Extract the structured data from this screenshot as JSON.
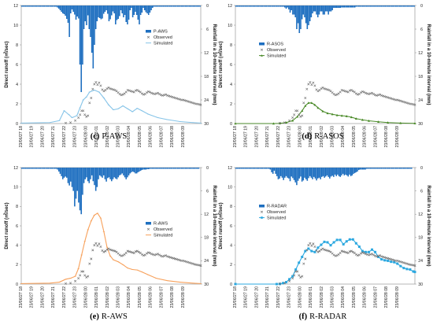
{
  "chart_data": [
    {
      "id": "c",
      "type": "line",
      "caption": {
        "letter": "(c)",
        "name": "P-AWS"
      },
      "legend": {
        "rain": "P-AWS",
        "observed": "Observed",
        "simulated": "Simulated"
      },
      "sim_color": "#86c4e8",
      "sim_marker": "line",
      "rain": [
        0.3,
        0.3,
        0.3,
        0.3,
        0.3,
        0.3,
        0.3,
        0.3,
        0.3,
        0.3,
        0.3,
        0.3,
        0.3,
        0.3,
        0.3,
        0.3,
        0.3,
        0.3,
        0.3,
        0.3,
        0.3,
        0.3,
        0.3,
        0.3,
        0.3,
        0.3,
        0.3,
        0.5,
        0.8,
        1.2,
        1.6,
        2.0,
        2.2,
        2.6,
        3.4,
        4.4,
        8,
        2,
        1,
        1.6,
        2.3,
        3.6,
        2.8,
        3.3,
        15,
        22,
        15,
        6,
        4,
        5,
        2.5,
        6,
        8,
        12,
        16,
        10,
        6,
        4,
        3,
        3.2,
        3.5,
        3.3,
        2.1,
        1.6,
        1.2,
        2.1,
        4,
        3.5,
        2.5,
        1.5,
        2,
        4.8,
        3.7,
        3.4,
        2.7,
        1.2,
        2,
        3,
        2.4,
        4.2,
        4.8,
        3.6,
        1.2,
        0.6,
        3,
        2.4,
        1.6,
        2.4,
        3.6,
        4.8,
        2.4,
        1.8,
        0.6,
        1.2,
        1.7,
        2,
        2.4,
        1.8,
        1.2,
        0.6,
        0.3,
        0.3,
        0.3,
        0.3,
        0.3,
        0.3,
        0.3,
        0.3,
        0.3,
        0.3,
        0.3,
        0.3,
        0.3,
        0.3,
        0.3,
        0.3,
        0.3,
        0.3,
        0.3,
        0.3,
        0.3,
        0.3,
        0.3,
        0.3,
        0.3,
        0.3,
        0.3,
        0.3,
        0.3,
        0.3,
        0.3,
        0.3,
        0.3,
        0.3,
        0.3,
        0.3
      ],
      "sim": [
        [
          0,
          0.05
        ],
        [
          18,
          0.1
        ],
        [
          24,
          0.3
        ],
        [
          27,
          1.3
        ],
        [
          30,
          0.9
        ],
        [
          32,
          0.6
        ],
        [
          35,
          0.8
        ],
        [
          37,
          1.6
        ],
        [
          39,
          2.4
        ],
        [
          41,
          2.7
        ],
        [
          43,
          3.2
        ],
        [
          46,
          3.4
        ],
        [
          49,
          3.2
        ],
        [
          52,
          2.6
        ],
        [
          55,
          1.9
        ],
        [
          58,
          1.4
        ],
        [
          61,
          1.5
        ],
        [
          64,
          1.8
        ],
        [
          67,
          1.5
        ],
        [
          70,
          1.2
        ],
        [
          73,
          1.55
        ],
        [
          76,
          1.3
        ],
        [
          80,
          0.95
        ],
        [
          86,
          0.6
        ],
        [
          92,
          0.4
        ],
        [
          100,
          0.2
        ],
        [
          108,
          0.1
        ],
        [
          113,
          0.05
        ]
      ]
    },
    {
      "id": "d",
      "type": "line",
      "caption": {
        "letter": "(d)",
        "name": "R-ASOS"
      },
      "legend": {
        "rain": "R-ASOS",
        "observed": "Observed",
        "simulated": "Simulated"
      },
      "sim_color": "#4a8a28",
      "sim_marker": "triangle",
      "rain": [
        0.3,
        0.3,
        0.3,
        0.3,
        0.3,
        0.3,
        0.3,
        0.3,
        0.3,
        0.3,
        0.3,
        0.3,
        0.3,
        0.3,
        0.3,
        0.3,
        0.3,
        0.3,
        0.3,
        0.3,
        0.3,
        0.3,
        0.3,
        0.3,
        0.3,
        0.3,
        0.3,
        0.3,
        0.3,
        0.3,
        0.3,
        0.3,
        0.3,
        0.3,
        0.3,
        0.3,
        0.3,
        0.5,
        0.8,
        0.5,
        1,
        1.8,
        1.2,
        2.3,
        2.3,
        3,
        6,
        4.5,
        7,
        6,
        3.5,
        2.3,
        3,
        4.5,
        6,
        5,
        4,
        3,
        2,
        1.5,
        1.5,
        2.3,
        3,
        2.3,
        1.5,
        1.5,
        2.3,
        2.3,
        1.5,
        1.5,
        2.3,
        1.5,
        1.5,
        1.2,
        0.6,
        0.6,
        0.6,
        0.6,
        0.6,
        0.6,
        0.5,
        0.5,
        0.5,
        0.5,
        0.5,
        0.5,
        0.5,
        0.5,
        0.5,
        0.5,
        0.5,
        0.3,
        0.3,
        0.3,
        0.3,
        0.3,
        0.3,
        0.3,
        0.3,
        0.3,
        0.3,
        0.3,
        0.3,
        0.3,
        0.3,
        0.3,
        0.3,
        0.3,
        0.3,
        0.3,
        0.3,
        0.3,
        0.3,
        0.3,
        0.3,
        0.3,
        0.3,
        0.3,
        0.3,
        0.3,
        0.3,
        0.3,
        0.3,
        0.3,
        0.3,
        0.3,
        0.3,
        0.3,
        0.3,
        0.3,
        0.3,
        0.3,
        0.3,
        0.3,
        0.3,
        0.3
      ],
      "sim": [
        [
          0,
          0
        ],
        [
          24,
          0
        ],
        [
          28,
          0.02
        ],
        [
          32,
          0.1
        ],
        [
          36,
          0.3
        ],
        [
          39,
          0.7
        ],
        [
          42,
          1.3
        ],
        [
          44,
          1.8
        ],
        [
          46,
          2.1
        ],
        [
          48,
          2.1
        ],
        [
          50,
          1.9
        ],
        [
          52,
          1.6
        ],
        [
          55,
          1.25
        ],
        [
          58,
          1.05
        ],
        [
          61,
          0.95
        ],
        [
          64,
          0.85
        ],
        [
          67,
          0.8
        ],
        [
          70,
          0.75
        ],
        [
          73,
          0.65
        ],
        [
          76,
          0.5
        ],
        [
          80,
          0.38
        ],
        [
          84,
          0.28
        ],
        [
          90,
          0.18
        ],
        [
          96,
          0.1
        ],
        [
          104,
          0.05
        ],
        [
          113,
          0.02
        ]
      ]
    },
    {
      "id": "e",
      "type": "line",
      "caption": {
        "letter": "(e)",
        "name": "R-AWS"
      },
      "legend": {
        "rain": "R-AWS",
        "observed": "Observed",
        "simulated": "Simulated"
      },
      "sim_color": "#f7a05a",
      "sim_marker": "line",
      "rain": [
        0.3,
        0.3,
        0.3,
        0.3,
        0.3,
        0.3,
        0.3,
        0.3,
        0.3,
        0.3,
        0.3,
        0.3,
        0.3,
        0.3,
        0.3,
        0.3,
        0.3,
        0.3,
        0.3,
        0.3,
        0.3,
        0.3,
        0.3,
        0.3,
        0.3,
        0.3,
        0.3,
        0.5,
        1,
        1.6,
        2.2,
        3,
        2.6,
        2.3,
        2.6,
        4,
        4.6,
        3.6,
        5,
        6,
        10,
        8,
        6,
        9,
        11,
        12,
        7,
        4,
        3,
        2.5,
        3.5,
        4,
        3,
        2,
        3.5,
        4.5,
        6,
        5,
        3,
        2,
        2.3,
        2.6,
        2,
        3,
        3.6,
        2.7,
        2.5,
        3,
        3.5,
        3,
        2.5,
        2.8,
        3,
        2.5,
        2,
        1.8,
        1.5,
        2,
        2.5,
        3,
        2.5,
        2,
        1.5,
        1.2,
        1,
        1.2,
        1.5,
        1.5,
        1.2,
        1,
        0.8,
        0.6,
        0.5,
        0.5,
        0.5,
        0.4,
        0.4,
        0.3,
        0.3,
        0.3,
        0.3,
        0.3,
        0.3,
        0.3,
        0.3,
        0.3,
        0.3,
        0.3,
        0.3,
        0.3,
        0.3,
        0.3,
        0.3,
        0.3,
        0.3,
        0.3,
        0.3,
        0.3,
        0.3,
        0.3,
        0.3,
        0.3,
        0.3,
        0.3,
        0.3,
        0.3,
        0.3,
        0.3,
        0.3,
        0.3,
        0.3,
        0.3,
        0.3,
        0.3,
        0.3
      ],
      "sim": [
        [
          0,
          0.05
        ],
        [
          18,
          0.1
        ],
        [
          24,
          0.2
        ],
        [
          28,
          0.5
        ],
        [
          31,
          0.6
        ],
        [
          34,
          0.8
        ],
        [
          36,
          1.6
        ],
        [
          38,
          3
        ],
        [
          40,
          4.4
        ],
        [
          42,
          5.6
        ],
        [
          44,
          6.5
        ],
        [
          46,
          7.1
        ],
        [
          48,
          7.3
        ],
        [
          50,
          6.8
        ],
        [
          52,
          5.4
        ],
        [
          54,
          3.8
        ],
        [
          56,
          2.9
        ],
        [
          58,
          2.5
        ],
        [
          61,
          2.3
        ],
        [
          64,
          2
        ],
        [
          67,
          1.65
        ],
        [
          70,
          1.5
        ],
        [
          73,
          1.45
        ],
        [
          76,
          1.25
        ],
        [
          80,
          0.95
        ],
        [
          85,
          0.6
        ],
        [
          92,
          0.35
        ],
        [
          100,
          0.2
        ],
        [
          108,
          0.1
        ],
        [
          113,
          0.05
        ]
      ]
    },
    {
      "id": "f",
      "type": "line",
      "caption": {
        "letter": "(f)",
        "name": "R-RADAR"
      },
      "legend": {
        "rain": "R-RADAR",
        "observed": "Observed",
        "simulated": "Simulated"
      },
      "sim_color": "#2ba8e0",
      "sim_marker": "square",
      "rain": [
        0.3,
        0.3,
        0.3,
        0.3,
        0.3,
        0.3,
        0.3,
        0.3,
        0.3,
        0.3,
        0.3,
        0.3,
        0.3,
        0.3,
        0.3,
        0.3,
        0.3,
        0.3,
        0.3,
        0.3,
        0.3,
        0.3,
        0.3,
        0.3,
        0.3,
        0.3,
        0.5,
        1.2,
        1.6,
        0.8,
        1.6,
        2.2,
        3,
        2.8,
        2.2,
        2.6,
        3.2,
        2.6,
        2.2,
        2.6,
        2.8,
        3.5,
        2.3,
        2.7,
        3.2,
        3.8,
        4.5,
        3.4,
        2.8,
        2.3,
        3.6,
        3.3,
        2.6,
        3,
        3.4,
        2.7,
        2.2,
        2.6,
        3,
        2.4,
        2.8,
        3.3,
        2.8,
        2.6,
        3,
        2.4,
        2.2,
        2.6,
        2.3,
        2,
        2.4,
        2.8,
        2.3,
        2.1,
        2.4,
        1.8,
        2.2,
        1.8,
        2.2,
        2.4,
        2,
        1.6,
        2,
        1.8,
        2,
        2.3,
        1.8,
        2.2,
        2,
        1.6,
        1.4,
        1.2,
        1,
        0.6,
        0.5,
        0.5,
        0.5,
        0.5,
        0.5,
        0.3,
        0.3,
        0.3,
        0.3,
        0.3,
        0.3,
        0.3,
        0.3,
        0.3,
        0.3,
        0.3,
        0.3,
        0.3,
        0.3,
        0.3,
        0.3,
        0.3,
        0.3,
        0.3,
        0.3,
        0.3,
        0.3,
        0.3,
        0.3,
        0.3,
        0.3,
        0.3,
        0.3,
        0.3,
        0.3,
        0.3,
        0.3,
        0.3,
        0.3,
        0.3
      ],
      "sim": [
        [
          0,
          0
        ],
        [
          26,
          0
        ],
        [
          28,
          0.01
        ],
        [
          30,
          0.1
        ],
        [
          32,
          0.2
        ],
        [
          34,
          0.5
        ],
        [
          36,
          0.8
        ],
        [
          38,
          1.5
        ],
        [
          40,
          2.2
        ],
        [
          42,
          2.8
        ],
        [
          44,
          3.4
        ],
        [
          46,
          3.65
        ],
        [
          48,
          3.4
        ],
        [
          50,
          3.3
        ],
        [
          52,
          3.75
        ],
        [
          54,
          4.05
        ],
        [
          56,
          4.35
        ],
        [
          58,
          4.3
        ],
        [
          60,
          4.0
        ],
        [
          62,
          4.3
        ],
        [
          64,
          4.55
        ],
        [
          66,
          4.55
        ],
        [
          68,
          4.1
        ],
        [
          70,
          4.4
        ],
        [
          72,
          4.6
        ],
        [
          74,
          4.6
        ],
        [
          76,
          4.2
        ],
        [
          78,
          3.85
        ],
        [
          80,
          3.4
        ],
        [
          82,
          3.3
        ],
        [
          84,
          3.3
        ],
        [
          86,
          3.55
        ],
        [
          88,
          3.3
        ],
        [
          90,
          2.8
        ],
        [
          92,
          2.55
        ],
        [
          94,
          2.45
        ],
        [
          96,
          2.4
        ],
        [
          98,
          2.3
        ],
        [
          100,
          2.25
        ],
        [
          102,
          2.1
        ],
        [
          104,
          1.85
        ],
        [
          106,
          1.65
        ],
        [
          108,
          1.55
        ],
        [
          110,
          1.5
        ],
        [
          112,
          1.3
        ],
        [
          113,
          1.25
        ]
      ]
    }
  ],
  "shared": {
    "observed": [
      [
        28,
        0.05
      ],
      [
        31,
        0.1
      ],
      [
        34,
        0.3
      ],
      [
        36,
        0.6
      ],
      [
        37,
        0.9
      ],
      [
        38,
        1.3
      ],
      [
        39,
        1.3
      ],
      [
        40,
        0.9
      ],
      [
        41,
        0.7
      ],
      [
        42,
        0.8
      ],
      [
        43,
        2.1
      ],
      [
        44,
        2.6
      ],
      [
        45,
        3.5
      ],
      [
        46,
        4.0
      ],
      [
        47,
        4.2
      ],
      [
        48,
        3.95
      ],
      [
        49,
        4.15
      ],
      [
        50,
        3.85
      ],
      [
        51,
        3.45
      ],
      [
        52,
        3.3
      ],
      [
        53,
        3.4
      ],
      [
        54,
        3.55
      ],
      [
        55,
        3.65
      ],
      [
        56,
        3.55
      ],
      [
        57,
        3.5
      ],
      [
        58,
        3.45
      ],
      [
        59,
        3.4
      ],
      [
        60,
        3.3
      ],
      [
        61,
        3.15
      ],
      [
        62,
        3.0
      ],
      [
        63,
        2.9
      ],
      [
        64,
        2.95
      ],
      [
        65,
        3.05
      ],
      [
        66,
        3.2
      ],
      [
        67,
        3.4
      ],
      [
        68,
        3.35
      ],
      [
        69,
        3.3
      ],
      [
        70,
        3.25
      ],
      [
        71,
        3.2
      ],
      [
        72,
        3.35
      ],
      [
        73,
        3.4
      ],
      [
        74,
        3.3
      ],
      [
        75,
        3.2
      ],
      [
        76,
        3.05
      ],
      [
        77,
        2.95
      ],
      [
        78,
        3.0
      ],
      [
        79,
        3.15
      ],
      [
        80,
        3.25
      ],
      [
        81,
        3.2
      ],
      [
        82,
        3.1
      ],
      [
        83,
        3.05
      ],
      [
        84,
        3.0
      ],
      [
        85,
        3.05
      ],
      [
        86,
        3.1
      ],
      [
        87,
        3.0
      ],
      [
        88,
        2.9
      ],
      [
        89,
        2.85
      ],
      [
        90,
        2.9
      ],
      [
        91,
        2.95
      ],
      [
        92,
        2.85
      ],
      [
        93,
        2.8
      ],
      [
        94,
        2.75
      ],
      [
        95,
        2.7
      ],
      [
        96,
        2.65
      ],
      [
        97,
        2.6
      ],
      [
        98,
        2.55
      ],
      [
        99,
        2.5
      ],
      [
        100,
        2.45
      ],
      [
        101,
        2.4
      ],
      [
        102,
        2.4
      ],
      [
        103,
        2.35
      ],
      [
        104,
        2.3
      ],
      [
        105,
        2.25
      ],
      [
        106,
        2.2
      ],
      [
        107,
        2.15
      ],
      [
        108,
        2.1
      ],
      [
        109,
        2.05
      ],
      [
        110,
        2.0
      ],
      [
        111,
        1.98
      ],
      [
        112,
        1.95
      ],
      [
        113,
        1.9
      ]
    ],
    "y_left_ticks": [
      "0",
      "2",
      "4",
      "6",
      "8",
      "10",
      "12"
    ],
    "y_right_ticks": [
      "0",
      "6",
      "12",
      "18",
      "24",
      "30"
    ],
    "ylim_runoff": [
      0,
      12
    ],
    "ylim_rain": [
      0,
      30
    ],
    "x_ticks": [
      "23/06/27 18",
      "23/06/27 19",
      "23/06/27 20",
      "23/06/27 21",
      "23/06/27 22",
      "23/06/27 23",
      "23/06/28 00",
      "23/06/28 01",
      "23/06/28 02",
      "23/06/28 03",
      "23/06/28 04",
      "23/06/28 05",
      "23/06/28 06",
      "23/06/28 07",
      "23/06/28 08",
      "23/06/28 09"
    ],
    "ylabel_left": "Direct runoff (㎥/sec)",
    "ylabel_right": "Rainfall in a 10-minute interval (mm)",
    "rain_color": "#1e6fc0",
    "observed_color": "#666666"
  }
}
